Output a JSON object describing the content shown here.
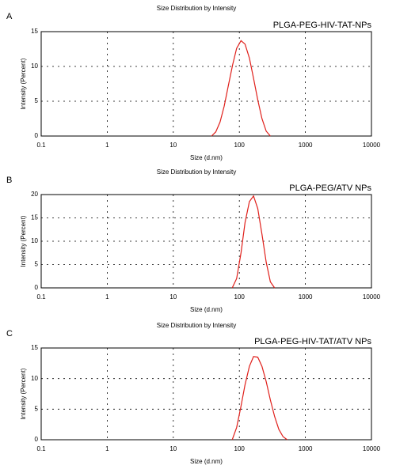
{
  "chart_data": [
    {
      "type": "line",
      "panel": "A",
      "title": "Size Distribution by Intensity",
      "annotation": "PLGA-PEG-HIV-TAT-NPs",
      "x_label": "Size (d.nm)",
      "y_label": "Intensity (Percent)",
      "x": [
        38,
        44,
        51,
        59,
        68,
        79,
        91,
        106,
        122,
        142,
        164,
        190,
        220,
        255,
        295
      ],
      "series": [
        {
          "color": "#e0201b",
          "values": [
            0,
            0.6,
            2.0,
            4.3,
            7.2,
            10.2,
            12.6,
            13.7,
            13.2,
            11.2,
            8.3,
            5.2,
            2.5,
            0.7,
            0
          ]
        }
      ],
      "xlim": [
        0.1,
        10000
      ],
      "xticks": [
        0.1,
        1,
        10,
        100,
        1000,
        10000
      ],
      "x_log": true,
      "ylim": [
        0,
        15
      ],
      "yticks": [
        0,
        5,
        10,
        15
      ],
      "grid": true
    },
    {
      "type": "line",
      "panel": "B",
      "title": "Size Distribution by Intensity",
      "annotation": "PLGA-PEG/ATV NPs",
      "x_label": "Size (d.nm)",
      "y_label": "Intensity (Percent)",
      "x": [
        78,
        91,
        106,
        122,
        142,
        164,
        190,
        220,
        255,
        295,
        342
      ],
      "series": [
        {
          "color": "#e0201b",
          "values": [
            0,
            2.0,
            7.5,
            14,
            18.5,
            19.7,
            17,
            11.5,
            5.5,
            1.3,
            0
          ]
        }
      ],
      "xlim": [
        0.1,
        10000
      ],
      "xticks": [
        0.1,
        1,
        10,
        100,
        1000,
        10000
      ],
      "x_log": true,
      "ylim": [
        0,
        20
      ],
      "yticks": [
        0,
        5,
        10,
        15,
        20
      ],
      "grid": true
    },
    {
      "type": "line",
      "panel": "C",
      "title": "Size Distribution by Intensity",
      "annotation": "PLGA-PEG-HIV-TAT/ATV NPs",
      "x_label": "Size (d.nm)",
      "y_label": "Intensity (Percent)",
      "x": [
        78,
        91,
        106,
        122,
        142,
        164,
        190,
        220,
        255,
        295,
        342,
        396,
        459,
        531
      ],
      "series": [
        {
          "color": "#e0201b",
          "values": [
            0,
            2.0,
            5.5,
            9.0,
            12,
            13.6,
            13.5,
            12,
            9.5,
            6.5,
            3.8,
            1.7,
            0.5,
            0
          ]
        }
      ],
      "xlim": [
        0.1,
        10000
      ],
      "xticks": [
        0.1,
        1,
        10,
        100,
        1000,
        10000
      ],
      "x_log": true,
      "ylim": [
        0,
        15
      ],
      "yticks": [
        0,
        5,
        10,
        15
      ],
      "grid": true
    }
  ]
}
